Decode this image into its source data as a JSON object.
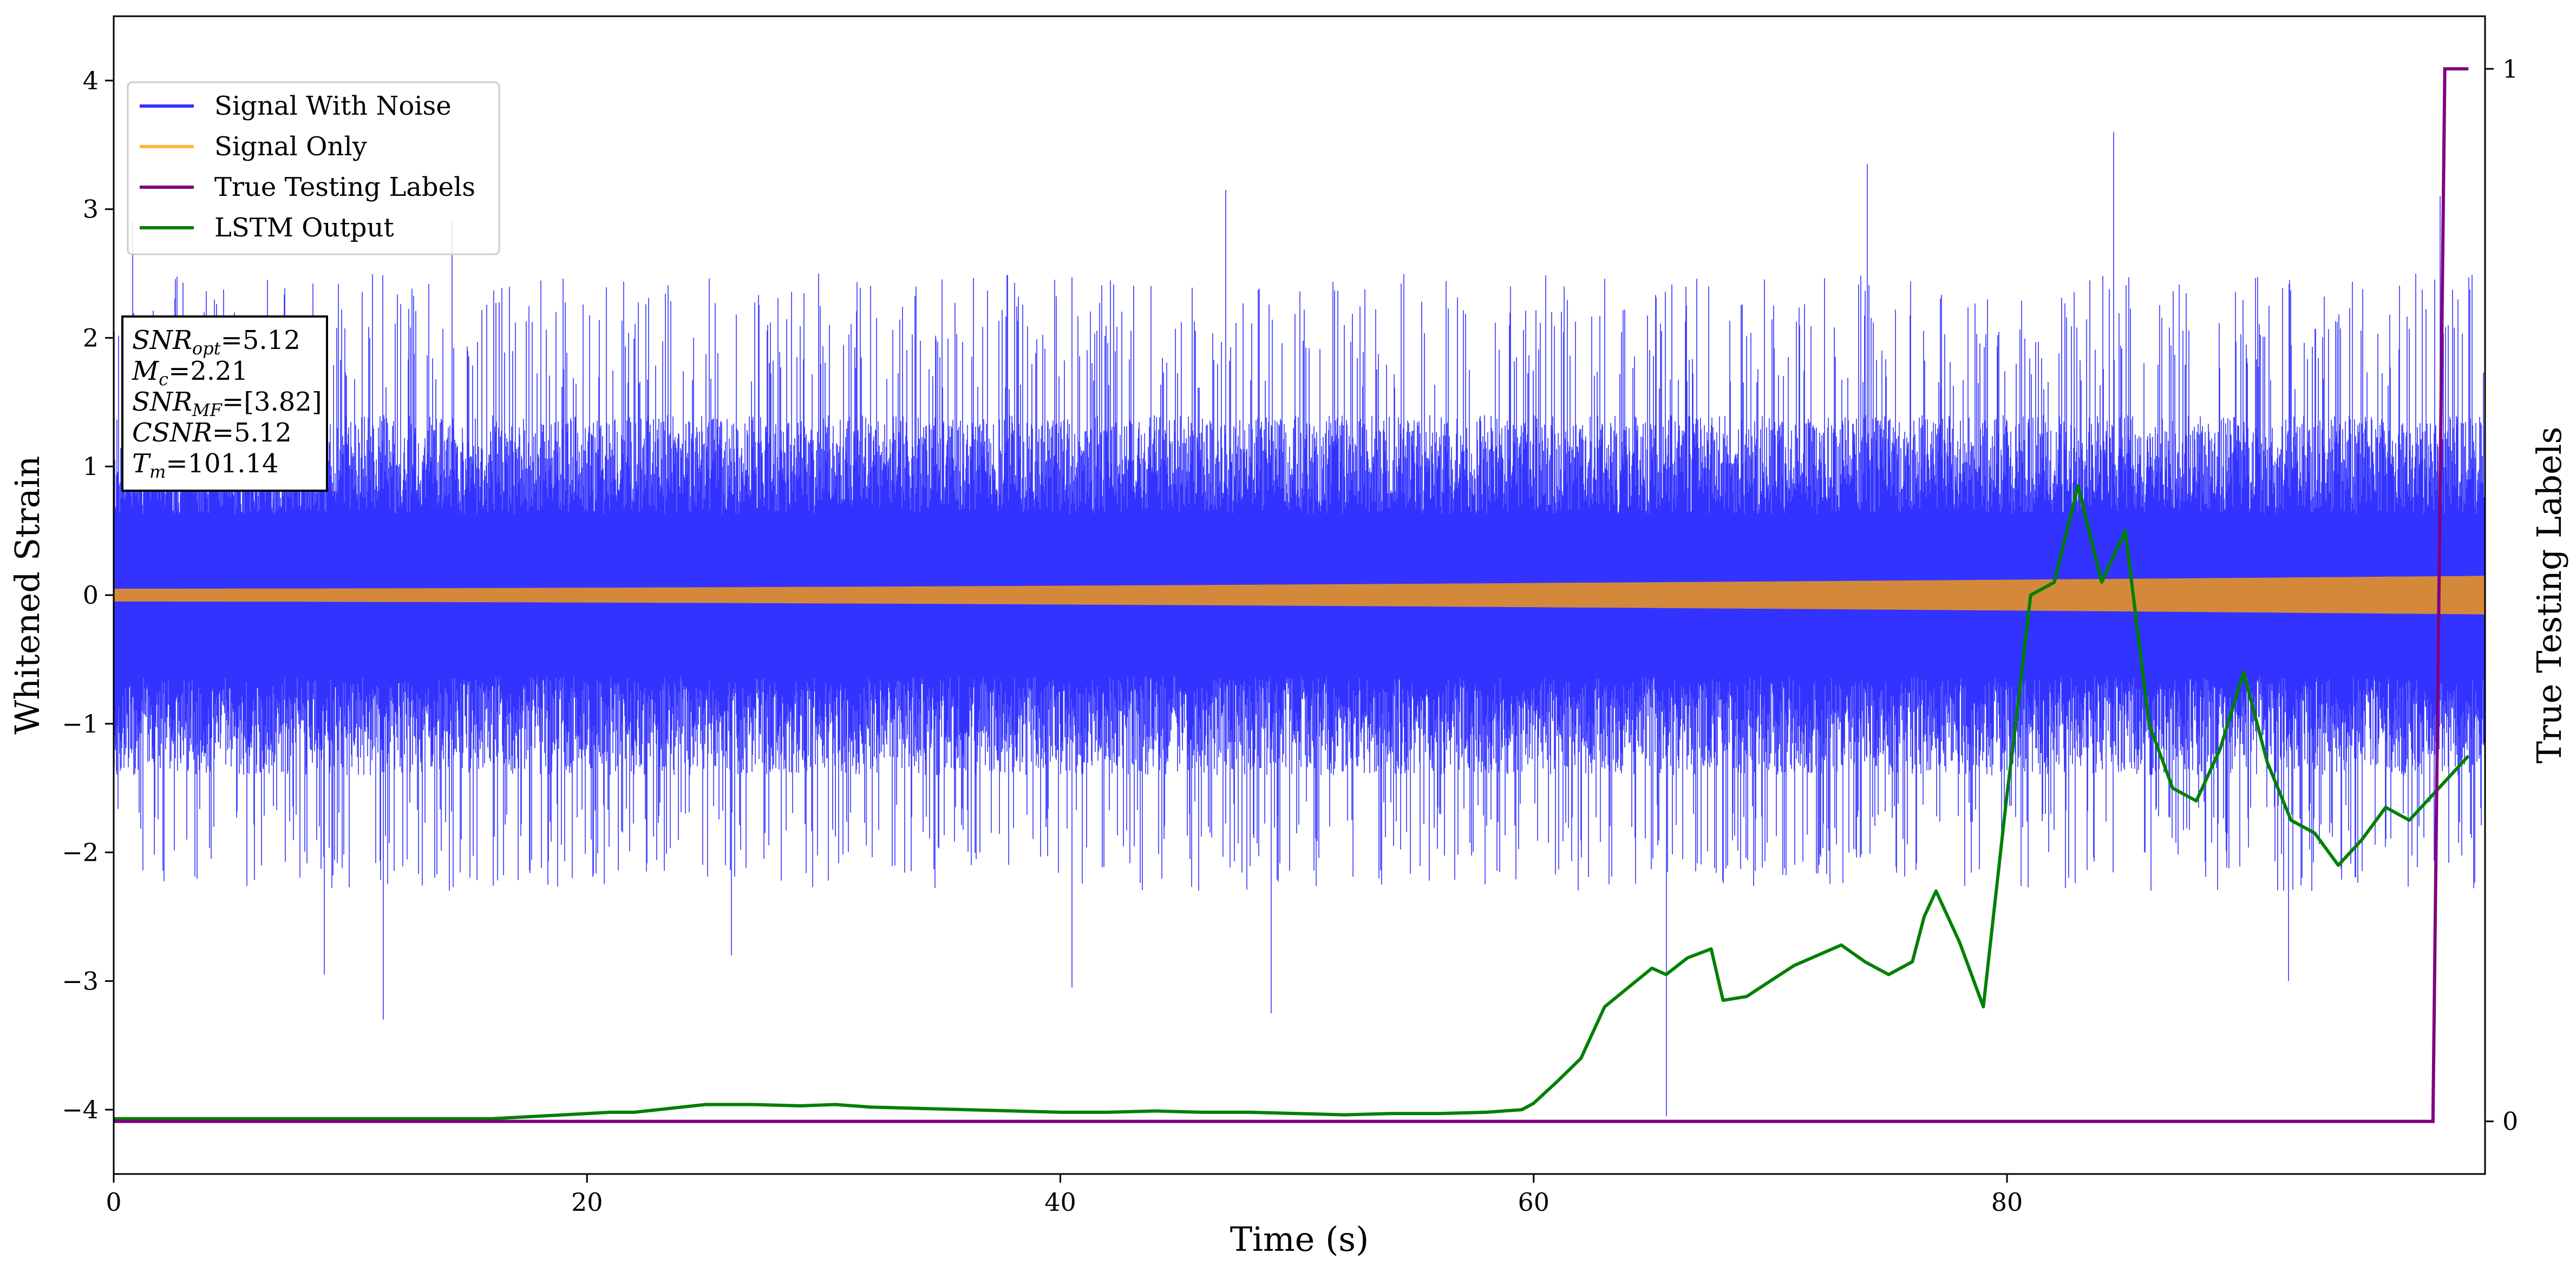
{
  "chart_data": {
    "type": "line",
    "xlabel": "Time (s)",
    "ylabel": "Whitened Strain",
    "y2label": "True Testing Labels",
    "xlim": [
      0,
      100.2
    ],
    "ylim": [
      -4.5,
      4.5
    ],
    "y2lim": [
      -0.05,
      1.05
    ],
    "x_ticks": [
      0,
      20,
      40,
      60,
      80
    ],
    "x_tick_labels": [
      "0",
      "20",
      "40",
      "60",
      "80"
    ],
    "y_ticks": [
      -4,
      -3,
      -2,
      -1,
      0,
      1,
      2,
      3,
      4
    ],
    "y_tick_labels": [
      "−4",
      "−3",
      "−2",
      "−1",
      "0",
      "1",
      "2",
      "3",
      "4"
    ],
    "y2_ticks": [
      0,
      1
    ],
    "y2_tick_labels": [
      "0",
      "1"
    ],
    "grid": false,
    "legend": {
      "position": "top-left",
      "entries": [
        {
          "name": "Signal With Noise",
          "color": "#3333ff"
        },
        {
          "name": "Signal Only",
          "color": "#ffb833"
        },
        {
          "name": "True Testing Labels",
          "color": "#800080"
        },
        {
          "name": "LSTM Output",
          "color": "#008000"
        }
      ]
    },
    "annotation": {
      "position": "upper-left",
      "lines": [
        {
          "base": "SNR",
          "sub": "opt",
          "value": "=5.12"
        },
        {
          "base": "M",
          "sub": "c",
          "value": "=2.21"
        },
        {
          "base": "SNR",
          "sub": "MF",
          "value": "=[3.82]"
        },
        {
          "base": "CSNR",
          "sub": "",
          "value": "=5.12"
        },
        {
          "base": "T",
          "sub": "m",
          "value": "=101.14"
        }
      ]
    },
    "series": [
      {
        "name": "Signal With Noise",
        "axis": "left",
        "color": "#3333ff",
        "kind": "noise_envelope",
        "typical_amplitude": [
          -1.4,
          1.4
        ],
        "peaks": [
          {
            "x": 0.8,
            "y": 2.9
          },
          {
            "x": 8.9,
            "y": -2.95
          },
          {
            "x": 11.4,
            "y": -3.3
          },
          {
            "x": 14.3,
            "y": 2.9
          },
          {
            "x": 26.1,
            "y": -2.8
          },
          {
            "x": 40.5,
            "y": -3.05
          },
          {
            "x": 47.0,
            "y": 3.15
          },
          {
            "x": 48.9,
            "y": -3.25
          },
          {
            "x": 65.6,
            "y": -4.05
          },
          {
            "x": 74.1,
            "y": 3.35
          },
          {
            "x": 84.5,
            "y": 3.6
          },
          {
            "x": 91.9,
            "y": -3.0
          },
          {
            "x": 98.3,
            "y": 3.1
          }
        ]
      },
      {
        "name": "Signal Only",
        "axis": "left",
        "color": "#d4893a",
        "kind": "chirp_band",
        "half_width_start": 0.05,
        "half_width_end": 0.15,
        "x_range": [
          0,
          100.2
        ]
      },
      {
        "name": "True Testing Labels",
        "axis": "right",
        "color": "#800080",
        "x": [
          0,
          98.0,
          98.5,
          99.5
        ],
        "y": [
          0,
          0,
          1,
          1
        ]
      },
      {
        "name": "LSTM Output",
        "axis": "left",
        "color": "#008000",
        "x": [
          0,
          16,
          18,
          20,
          21,
          22,
          24,
          25,
          27,
          29,
          30.5,
          32,
          34,
          36,
          38,
          40,
          42,
          44,
          46,
          48,
          50,
          52,
          54,
          56,
          58,
          59.5,
          60,
          61,
          62,
          62.5,
          63,
          64,
          65,
          65.6,
          66.5,
          67.5,
          68,
          69,
          70,
          71,
          72,
          73,
          74,
          75,
          76,
          76.5,
          77,
          78,
          79,
          80,
          80.5,
          81,
          82,
          83,
          84,
          85,
          86,
          87,
          88,
          89,
          90,
          91,
          92,
          93,
          94,
          95,
          96,
          97,
          98,
          99.5
        ],
        "y": [
          -4.07,
          -4.07,
          -4.05,
          -4.03,
          -4.02,
          -4.02,
          -3.98,
          -3.96,
          -3.96,
          -3.97,
          -3.96,
          -3.98,
          -3.99,
          -4.0,
          -4.01,
          -4.02,
          -4.02,
          -4.01,
          -4.02,
          -4.02,
          -4.03,
          -4.04,
          -4.03,
          -4.03,
          -4.02,
          -4.0,
          -3.95,
          -3.78,
          -3.6,
          -3.4,
          -3.2,
          -3.05,
          -2.9,
          -2.95,
          -2.82,
          -2.75,
          -3.15,
          -3.12,
          -3.0,
          -2.88,
          -2.8,
          -2.72,
          -2.85,
          -2.95,
          -2.85,
          -2.5,
          -2.3,
          -2.7,
          -3.2,
          -1.55,
          -0.8,
          0.0,
          0.1,
          0.85,
          0.1,
          0.5,
          -1.0,
          -1.5,
          -1.6,
          -1.2,
          -0.6,
          -1.3,
          -1.75,
          -1.85,
          -2.1,
          -1.9,
          -1.65,
          -1.75,
          -1.55,
          -1.25
        ]
      }
    ]
  }
}
